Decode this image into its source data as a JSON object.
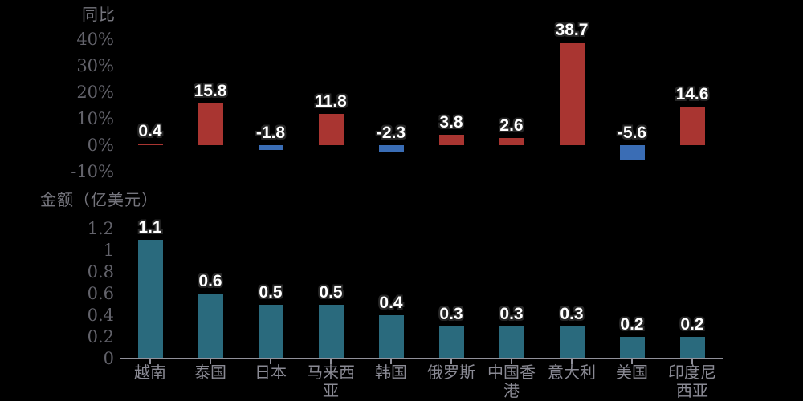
{
  "page": {
    "background_color": "#000000",
    "text_colors": {
      "title": "#75757d",
      "axis_ticks": "#63636b",
      "category_labels": "#8a8a94",
      "axis_line": "#90909a",
      "data_label_fill": "#ffffff",
      "data_label_outline": "#262626"
    }
  },
  "chart_data": [
    {
      "type": "bar",
      "title": "同比",
      "categories": [
        "越南",
        "泰国",
        "日本",
        "马来西亚",
        "韩国",
        "俄罗斯",
        "中国香港",
        "意大利",
        "美国",
        "印度尼西亚"
      ],
      "values": [
        0.4,
        15.8,
        -1.8,
        11.8,
        -2.3,
        3.8,
        2.6,
        38.7,
        -5.6,
        14.6
      ],
      "data_labels": [
        "0.4",
        "15.8",
        "-1.8",
        "11.8",
        "-2.3",
        "3.8",
        "2.6",
        "38.7",
        "-5.6",
        "14.6"
      ],
      "unit": "%",
      "ylim": [
        -10,
        40
      ],
      "ytick_labels": [
        "40%",
        "30%",
        "20%",
        "10%",
        "0%",
        "-10%"
      ],
      "positive_color": "#a93531",
      "negative_color": "#3a6db5",
      "grid": false,
      "legend_position": "none",
      "xaxis_line_visible": false
    },
    {
      "type": "bar",
      "title": "金额（亿美元）",
      "categories": [
        "越南",
        "泰国",
        "日本",
        "马来西亚",
        "韩国",
        "俄罗斯",
        "中国香港",
        "意大利",
        "美国",
        "印度尼西亚"
      ],
      "categories_display": [
        [
          "越南"
        ],
        [
          "泰国"
        ],
        [
          "日本"
        ],
        [
          "马来西",
          "亚"
        ],
        [
          "韩国"
        ],
        [
          "俄罗斯"
        ],
        [
          "中国香",
          "港"
        ],
        [
          "意大利"
        ],
        [
          "美国"
        ],
        [
          "印度尼",
          "西亚"
        ]
      ],
      "values": [
        1.1,
        0.6,
        0.5,
        0.5,
        0.4,
        0.3,
        0.3,
        0.3,
        0.2,
        0.2
      ],
      "data_labels": [
        "1.1",
        "0.6",
        "0.5",
        "0.5",
        "0.4",
        "0.3",
        "0.3",
        "0.3",
        "0.2",
        "0.2"
      ],
      "unit": "亿美元",
      "ylim": [
        0,
        1.2
      ],
      "ytick_labels": [
        "1.2",
        "1",
        "0.8",
        "0.6",
        "0.4",
        "0.2",
        "0"
      ],
      "bar_color": "#2a6a7d",
      "grid": false,
      "legend_position": "none",
      "xaxis_line_visible": true
    }
  ]
}
